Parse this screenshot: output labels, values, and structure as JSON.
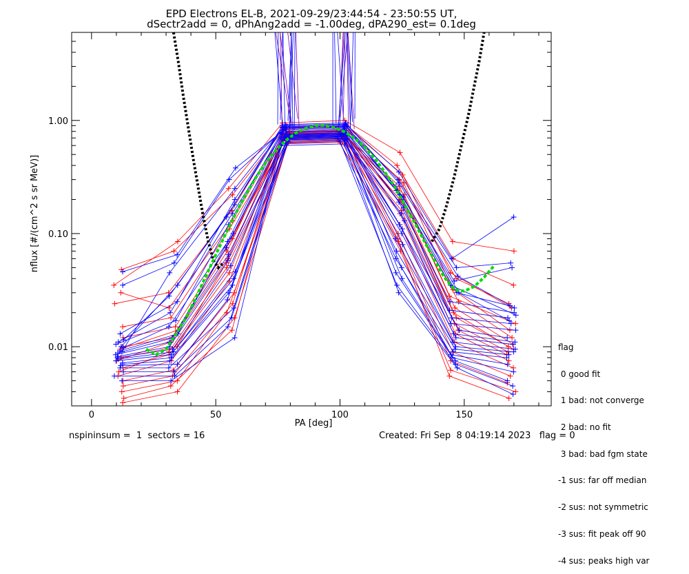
{
  "chart_data": {
    "type": "line",
    "title_line1": "EPD Electrons EL-B, 2021-09-29/23:44:54 - 23:50:55 UT,",
    "title_line2": "dSectr2add = 0, dPhAng2add = -1.00deg, dPA290_est=   0.1deg",
    "xlabel": "PA [deg]",
    "ylabel": "nflux [#/(cm^2 s sr MeV)]",
    "xlim": [
      -8,
      185
    ],
    "ylim": [
      0.003,
      6.0
    ],
    "yscale": "log",
    "x_ticks": [
      0,
      50,
      100,
      150
    ],
    "x_tick_labels": [
      "0",
      "50",
      "100",
      "150"
    ],
    "y_ticks": [
      0.01,
      0.1,
      1.0
    ],
    "y_tick_labels": [
      "0.01",
      "0.10",
      "1.00"
    ],
    "pa_bins": [
      11,
      33,
      56,
      78,
      101,
      124,
      146,
      169
    ],
    "series": [
      {
        "color": "#ff0000",
        "lines": [
          [
            0.035,
            0.085,
            0.25,
            0.95,
            1.0,
            0.52,
            0.085,
            0.07
          ],
          [
            0.048,
            0.07,
            0.22,
            0.9,
            0.92,
            0.4,
            0.06,
            0.035
          ],
          [
            0.03,
            0.022,
            0.13,
            0.85,
            0.88,
            0.33,
            0.045,
            0.022
          ],
          [
            0.012,
            0.015,
            0.09,
            0.8,
            0.82,
            0.28,
            0.032,
            0.014
          ],
          [
            0.01,
            0.012,
            0.07,
            0.78,
            0.8,
            0.24,
            0.025,
            0.012
          ],
          [
            0.008,
            0.01,
            0.055,
            0.75,
            0.78,
            0.2,
            0.02,
            0.01
          ],
          [
            0.0065,
            0.0085,
            0.045,
            0.72,
            0.75,
            0.17,
            0.016,
            0.009
          ],
          [
            0.0055,
            0.0075,
            0.038,
            0.7,
            0.73,
            0.15,
            0.013,
            0.0075
          ],
          [
            0.005,
            0.0062,
            0.03,
            0.68,
            0.7,
            0.12,
            0.011,
            0.0065
          ],
          [
            0.0045,
            0.0055,
            0.024,
            0.66,
            0.68,
            0.1,
            0.009,
            0.0055
          ],
          [
            0.004,
            0.005,
            0.02,
            0.64,
            0.66,
            0.085,
            0.0075,
            0.0048
          ],
          [
            0.0035,
            0.0045,
            0.014,
            0.62,
            0.64,
            0.07,
            0.0062,
            0.004
          ],
          [
            0.0032,
            0.004,
            0.018,
            0.7,
            0.72,
            0.09,
            0.0055,
            0.0035
          ],
          [
            0.024,
            0.03,
            0.16,
            0.88,
            0.86,
            0.3,
            0.04,
            0.024
          ],
          [
            0.015,
            0.018,
            0.11,
            0.82,
            0.84,
            0.26,
            0.028,
            0.016
          ],
          [
            0.0095,
            0.014,
            0.075,
            0.79,
            0.81,
            0.22,
            0.022,
            0.0105
          ],
          [
            0.0075,
            0.011,
            0.06,
            0.77,
            0.79,
            0.19,
            0.018,
            0.0095
          ],
          [
            0.006,
            0.009,
            0.05,
            0.74,
            0.76,
            0.16,
            0.014,
            0.0085
          ]
        ]
      },
      {
        "color": "#0000ff",
        "lines": [
          [
            0.046,
            0.065,
            0.38,
            0.9,
            0.93,
            0.35,
            0.06,
            0.14
          ],
          [
            0.035,
            0.055,
            0.3,
            0.88,
            0.9,
            0.3,
            0.05,
            0.055
          ],
          [
            0.013,
            0.025,
            0.2,
            0.86,
            0.88,
            0.26,
            0.038,
            0.05
          ],
          [
            0.011,
            0.02,
            0.15,
            0.84,
            0.86,
            0.22,
            0.03,
            0.023
          ],
          [
            0.0105,
            0.017,
            0.12,
            0.82,
            0.84,
            0.19,
            0.025,
            0.02
          ],
          [
            0.0098,
            0.015,
            0.1,
            0.8,
            0.82,
            0.17,
            0.021,
            0.018
          ],
          [
            0.0092,
            0.013,
            0.085,
            0.78,
            0.8,
            0.15,
            0.018,
            0.016
          ],
          [
            0.0088,
            0.012,
            0.075,
            0.76,
            0.78,
            0.13,
            0.016,
            0.014
          ],
          [
            0.0085,
            0.011,
            0.065,
            0.75,
            0.77,
            0.12,
            0.014,
            0.012
          ],
          [
            0.0082,
            0.01,
            0.058,
            0.74,
            0.76,
            0.11,
            0.013,
            0.011
          ],
          [
            0.008,
            0.0095,
            0.052,
            0.73,
            0.75,
            0.1,
            0.012,
            0.0105
          ],
          [
            0.0078,
            0.009,
            0.046,
            0.72,
            0.74,
            0.09,
            0.011,
            0.0095
          ],
          [
            0.0075,
            0.0085,
            0.04,
            0.71,
            0.73,
            0.08,
            0.01,
            0.009
          ],
          [
            0.0072,
            0.008,
            0.035,
            0.7,
            0.72,
            0.07,
            0.0095,
            0.0085
          ],
          [
            0.007,
            0.0075,
            0.03,
            0.69,
            0.71,
            0.06,
            0.009,
            0.008
          ],
          [
            0.0068,
            0.007,
            0.026,
            0.68,
            0.7,
            0.05,
            0.0085,
            0.007
          ],
          [
            0.0065,
            0.0065,
            0.022,
            0.67,
            0.69,
            0.045,
            0.008,
            0.006
          ],
          [
            0.006,
            0.006,
            0.018,
            0.65,
            0.67,
            0.04,
            0.0075,
            0.005
          ],
          [
            0.0055,
            0.0055,
            0.015,
            0.63,
            0.65,
            0.035,
            0.007,
            0.0045
          ],
          [
            0.005,
            0.005,
            0.012,
            0.6,
            0.62,
            0.03,
            0.0065,
            0.0038
          ],
          [
            0.009,
            0.045,
            0.25,
            0.92,
            0.95,
            0.28,
            0.042,
            0.022
          ],
          [
            0.01,
            0.035,
            0.18,
            0.9,
            0.92,
            0.24,
            0.035,
            0.019
          ],
          [
            0.0115,
            0.028,
            0.14,
            0.87,
            0.89,
            0.21,
            0.03,
            0.017
          ]
        ]
      }
    ],
    "green_fit": {
      "color": "#00dd00",
      "x": [
        22,
        26,
        30,
        34,
        38,
        42,
        46,
        50,
        54,
        58,
        62,
        66,
        70,
        74,
        78,
        82,
        86,
        90,
        94,
        98,
        102,
        106,
        110,
        114,
        118,
        122,
        126,
        130,
        134,
        138,
        142,
        146,
        150,
        154,
        158,
        162
      ],
      "y": [
        0.0095,
        0.0085,
        0.0095,
        0.013,
        0.018,
        0.027,
        0.042,
        0.065,
        0.1,
        0.15,
        0.22,
        0.31,
        0.42,
        0.54,
        0.66,
        0.77,
        0.85,
        0.9,
        0.9,
        0.86,
        0.79,
        0.69,
        0.58,
        0.46,
        0.35,
        0.26,
        0.18,
        0.125,
        0.085,
        0.058,
        0.041,
        0.032,
        0.031,
        0.034,
        0.041,
        0.052
      ]
    },
    "black_curve": {
      "color": "#000000",
      "left": {
        "x": [
          33,
          35,
          37,
          39,
          41,
          43,
          45,
          47,
          49,
          51,
          53
        ],
        "y": [
          6.0,
          3.2,
          1.6,
          0.85,
          0.45,
          0.25,
          0.14,
          0.085,
          0.058,
          0.05,
          0.055
        ]
      },
      "right": {
        "x": [
          137,
          140,
          143,
          146,
          149,
          152,
          154,
          156,
          158
        ],
        "y": [
          0.085,
          0.11,
          0.18,
          0.32,
          0.62,
          1.2,
          2.0,
          3.3,
          6.0
        ]
      }
    }
  },
  "footer": {
    "left": "nspininsum =  1  sectors = 16",
    "right": "Created: Fri Sep  8 04:19:14 2023   flag = 0"
  },
  "legend": {
    "title": "flag",
    "items": [
      " 0 good fit",
      " 1 bad: not converge",
      " 2 bad: no fit",
      " 3 bad: bad fgm state",
      "-1 sus: far off median",
      "-2 sus: not symmetric",
      "-3 sus: fit peak off 90",
      "-4 sus: peaks high var"
    ]
  }
}
